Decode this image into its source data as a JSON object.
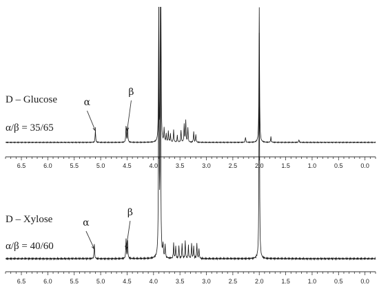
{
  "chart_data": [
    {
      "type": "line",
      "title": "",
      "xlabel": "",
      "ylabel": "",
      "x_reversed": true,
      "xlim": [
        6.8,
        -0.2
      ],
      "ticks": [
        "6.5",
        "6.0",
        "5.5",
        "5.0",
        "4.5",
        "4.0",
        "3.5",
        "3.0",
        "2.5",
        "2.0",
        "1.5",
        "1.0",
        "0.5",
        "0.0"
      ],
      "tick_values": [
        6.5,
        6.0,
        5.5,
        5.0,
        4.5,
        4.0,
        3.5,
        3.0,
        2.5,
        2.0,
        1.5,
        1.0,
        0.5,
        0.0
      ],
      "compound_label": "D – Glucose",
      "ratio_label": "α/β = 35/65",
      "annotations": [
        {
          "text": "α",
          "x": 5.1
        },
        {
          "text": "β",
          "x": 4.5
        }
      ],
      "series": [
        {
          "peaks": [
            {
              "x": 5.1,
              "h": 0.09
            },
            {
              "x": 4.52,
              "h": 0.12
            },
            {
              "x": 4.49,
              "h": 0.11
            },
            {
              "x": 3.9,
              "h": 1.0
            },
            {
              "x": 3.86,
              "h": 1.0
            },
            {
              "x": 3.8,
              "h": 0.1
            },
            {
              "x": 3.76,
              "h": 0.06
            },
            {
              "x": 3.72,
              "h": 0.08
            },
            {
              "x": 3.68,
              "h": 0.06
            },
            {
              "x": 3.62,
              "h": 0.09
            },
            {
              "x": 3.55,
              "h": 0.05
            },
            {
              "x": 3.48,
              "h": 0.09
            },
            {
              "x": 3.42,
              "h": 0.13
            },
            {
              "x": 3.39,
              "h": 0.16
            },
            {
              "x": 3.35,
              "h": 0.11
            },
            {
              "x": 3.24,
              "h": 0.08
            },
            {
              "x": 3.2,
              "h": 0.06
            },
            {
              "x": 2.26,
              "h": 0.04
            },
            {
              "x": 2.0,
              "h": 1.0
            },
            {
              "x": 1.78,
              "h": 0.04
            },
            {
              "x": 1.25,
              "h": 0.02
            }
          ]
        }
      ]
    },
    {
      "type": "line",
      "title": "",
      "xlabel": "",
      "ylabel": "",
      "x_reversed": true,
      "xlim": [
        6.8,
        -0.2
      ],
      "ticks": [
        "6.5",
        "6.0",
        "5.5",
        "5.0",
        "4.5",
        "4.0",
        "3.5",
        "3.0",
        "2.5",
        "2.0",
        "1.5",
        "1.0",
        "0.5",
        "0.0"
      ],
      "tick_values": [
        6.5,
        6.0,
        5.5,
        5.0,
        4.5,
        4.0,
        3.5,
        3.0,
        2.5,
        2.0,
        1.5,
        1.0,
        0.5,
        0.0
      ],
      "compound_label": "D – Xylose",
      "ratio_label": "α/β = 40/60",
      "annotations": [
        {
          "text": "α",
          "x": 5.12
        },
        {
          "text": "β",
          "x": 4.52
        }
      ],
      "series": [
        {
          "peaks": [
            {
              "x": 5.12,
              "h": 0.06
            },
            {
              "x": 4.52,
              "h": 0.08
            },
            {
              "x": 4.49,
              "h": 0.07
            },
            {
              "x": 3.9,
              "h": 1.0
            },
            {
              "x": 3.87,
              "h": 1.0
            },
            {
              "x": 3.82,
              "h": 0.05
            },
            {
              "x": 3.78,
              "h": 0.05
            },
            {
              "x": 3.62,
              "h": 0.06
            },
            {
              "x": 3.58,
              "h": 0.05
            },
            {
              "x": 3.52,
              "h": 0.05
            },
            {
              "x": 3.46,
              "h": 0.06
            },
            {
              "x": 3.4,
              "h": 0.07
            },
            {
              "x": 3.34,
              "h": 0.05
            },
            {
              "x": 3.28,
              "h": 0.06
            },
            {
              "x": 3.24,
              "h": 0.05
            },
            {
              "x": 3.18,
              "h": 0.06
            },
            {
              "x": 3.14,
              "h": 0.04
            },
            {
              "x": 2.0,
              "h": 0.9
            }
          ]
        }
      ]
    }
  ]
}
